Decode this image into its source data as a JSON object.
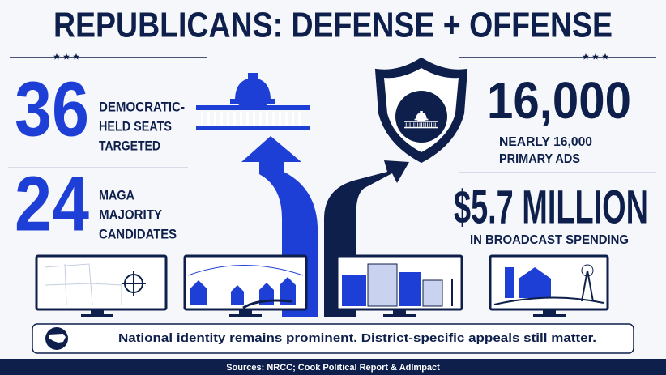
{
  "header": {
    "title": "REPUBLICANS: DEFENSE + OFFENSE"
  },
  "left_stats": [
    {
      "number": "36",
      "label_lines": [
        "DEMOCRATIC-",
        "HELD SEATS",
        "TARGETED"
      ]
    },
    {
      "number": "24",
      "label_lines": [
        "MAGA",
        "MAJORITY",
        "CANDIDATES"
      ]
    }
  ],
  "right_stats": [
    {
      "number": "16,000",
      "label_lines": [
        "NEARLY 16,000",
        "PRIMARY ADS"
      ]
    },
    {
      "number": "$5.7 MILLION",
      "label_lines": [
        "IN BROADCAST SPENDING"
      ]
    }
  ],
  "banner": {
    "text": "National identity remains prominent. District-specific appeals still matter."
  },
  "footer": {
    "sources": "Sources: NRCC; Cook Political Report & AdImpact"
  }
}
